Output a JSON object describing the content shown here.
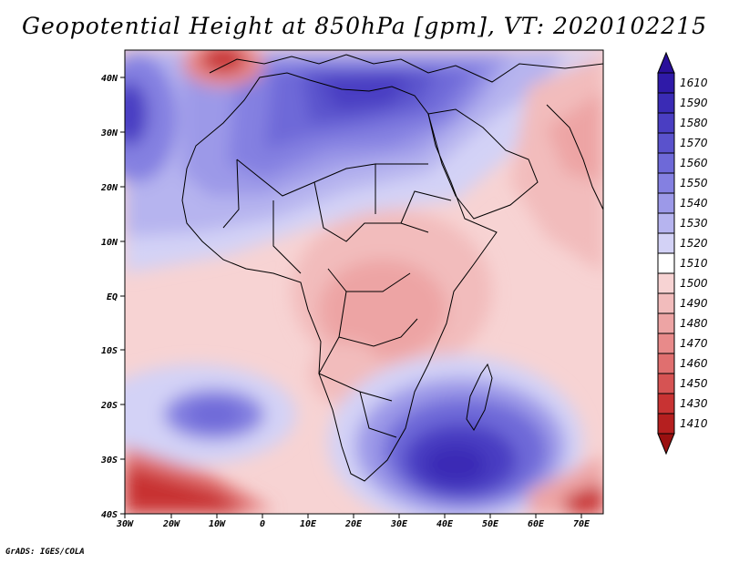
{
  "title": "Geopotential Height at 850hPa [gpm], VT: 2020102215",
  "credit": "GrADS: IGES/COLA",
  "x_axis_labels": [
    "30W",
    "20W",
    "10W",
    "0",
    "10E",
    "20E",
    "30E",
    "40E",
    "50E",
    "60E",
    "70E"
  ],
  "y_axis_labels": [
    "40N",
    "30N",
    "20N",
    "10N",
    "EQ",
    "10S",
    "20S",
    "30S",
    "40S"
  ],
  "colorbar": {
    "levels": [
      "1610",
      "1590",
      "1580",
      "1570",
      "1560",
      "1550",
      "1540",
      "1530",
      "1520",
      "1510",
      "1500",
      "1490",
      "1480",
      "1470",
      "1460",
      "1450",
      "1430",
      "1410"
    ],
    "colors": {
      "top_arrow": "#2a0f9a",
      "1610": "#2f1aa8",
      "1590": "#3a2bb5",
      "1580": "#4a3ec2",
      "1570": "#5a52cc",
      "1560": "#6e69d8",
      "1550": "#8480e1",
      "1540": "#9c99e8",
      "1530": "#b6b4ef",
      "1520": "#d3d2f6",
      "1510": "#ffffff",
      "1500": "#f7d3d3",
      "1490": "#f2bcbc",
      "1480": "#eda4a4",
      "1470": "#e88a8a",
      "1460": "#e06f6f",
      "1450": "#d65353",
      "1430": "#c83333",
      "1410": "#b51f1f",
      "bottom_arrow": "#9a1010"
    }
  }
}
